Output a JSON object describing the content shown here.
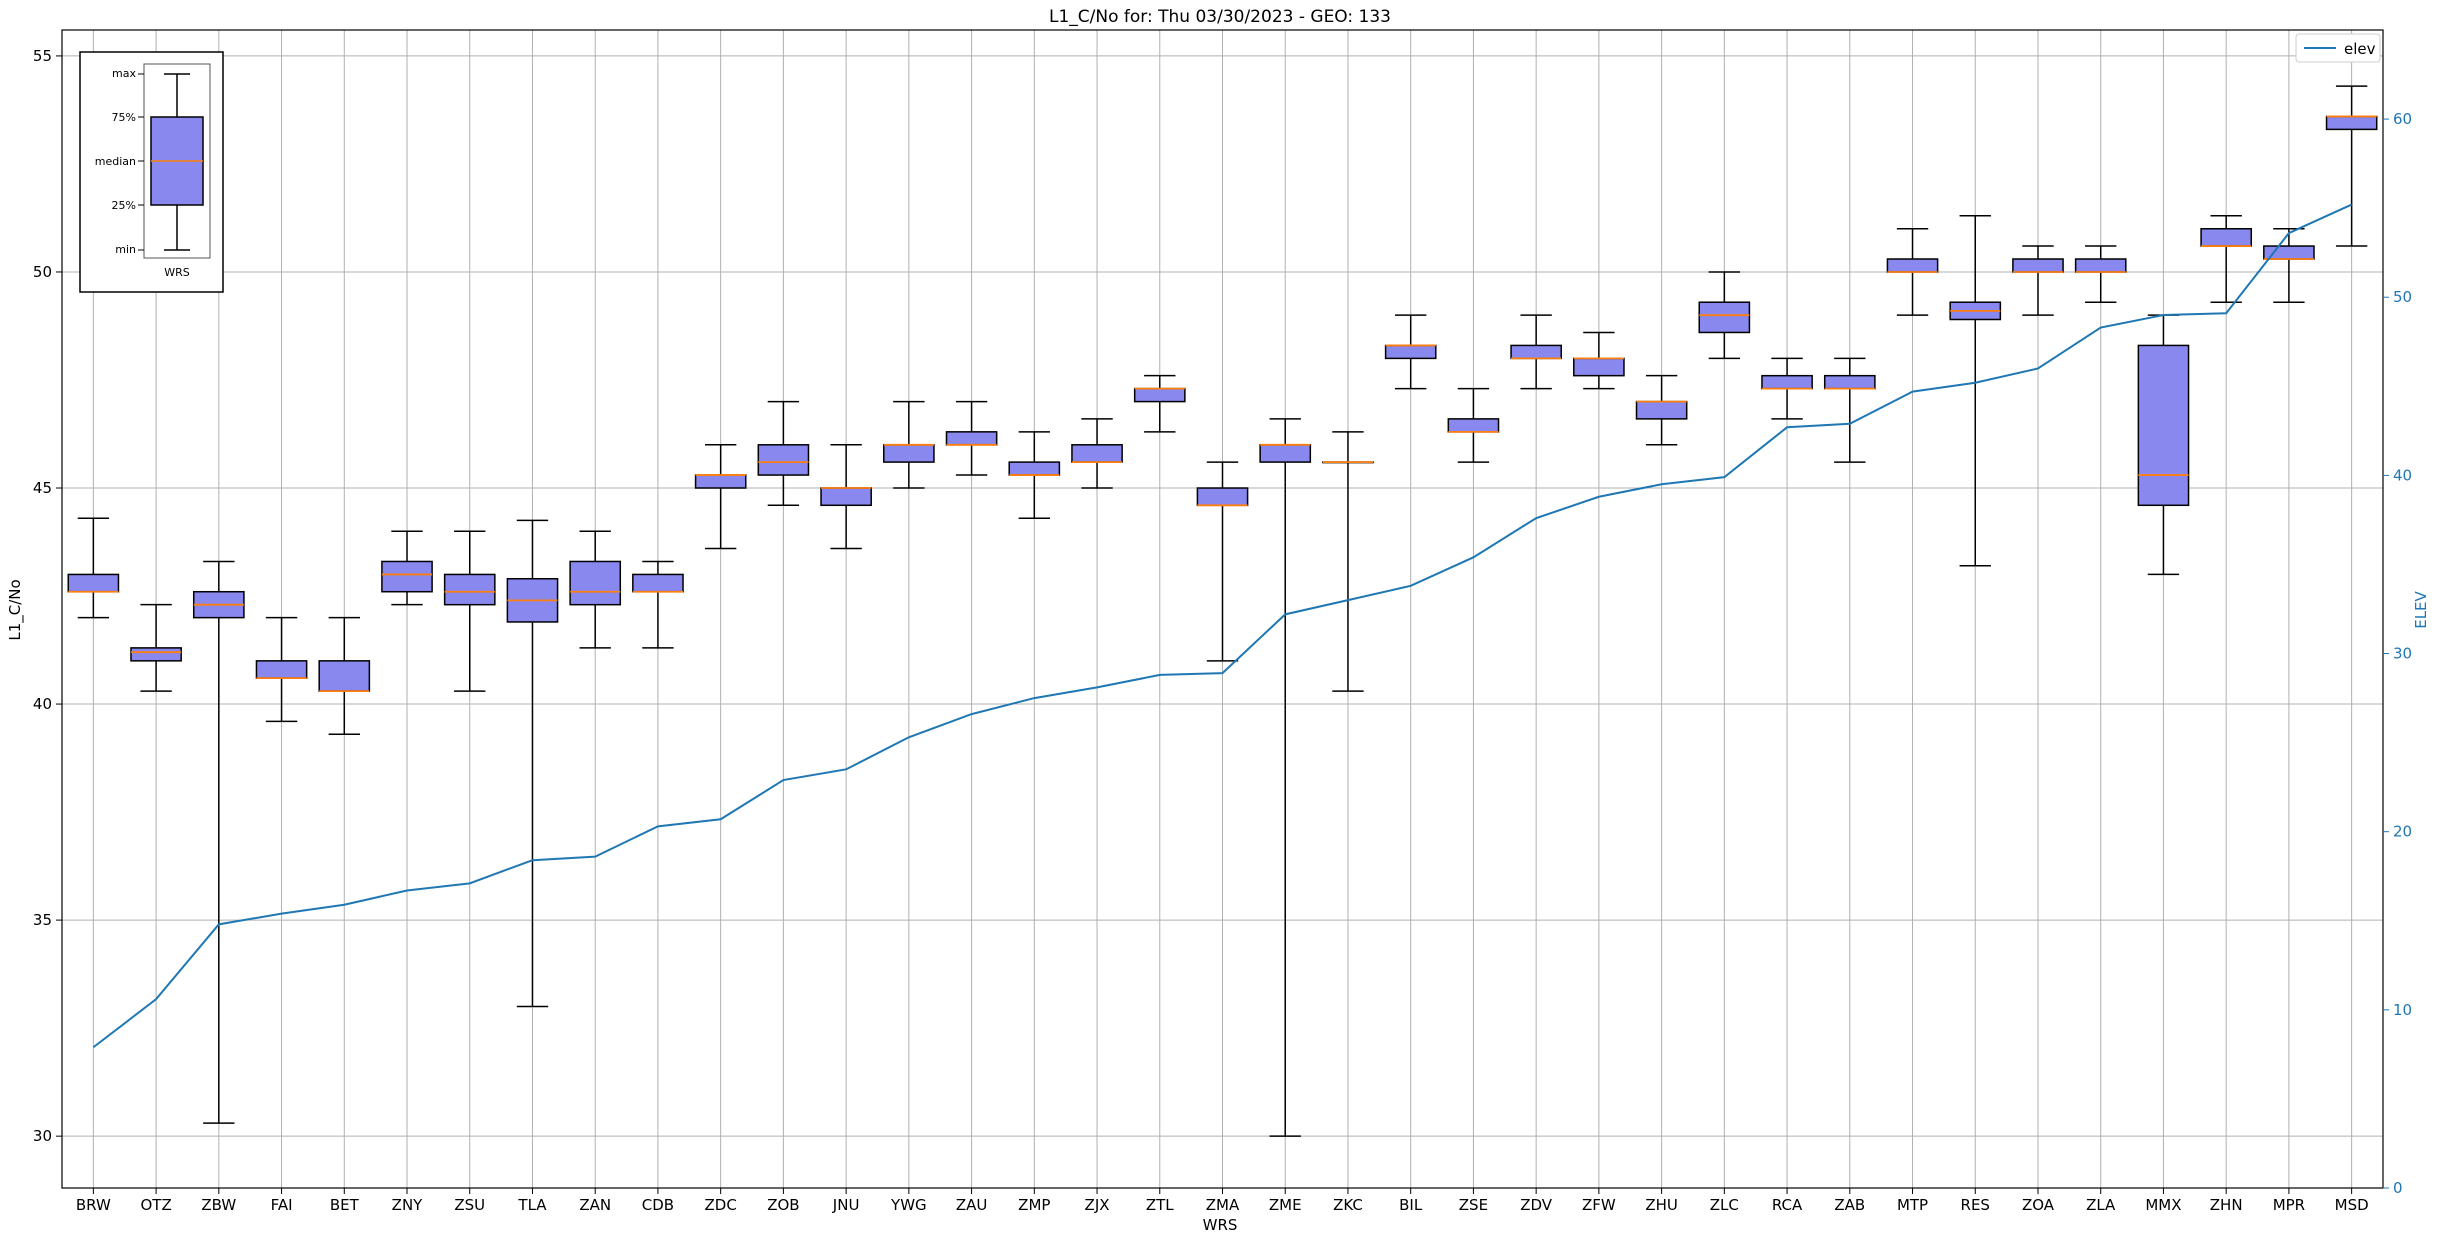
{
  "chart_data": {
    "type": "box",
    "title": "L1_C/No for: Thu 03/30/2023 - GEO: 133",
    "xlabel": "WRS",
    "ylabel": "L1_C/No",
    "y2label": "ELEV",
    "ylim": [
      28.8,
      55.6
    ],
    "y2lim": [
      0,
      65
    ],
    "yticks": [
      30,
      35,
      40,
      45,
      50,
      55
    ],
    "y2ticks": [
      0,
      10,
      20,
      30,
      40,
      50,
      60
    ],
    "grid": true,
    "legend": {
      "position": "top-right",
      "entries": [
        "elev"
      ]
    },
    "colors": {
      "box_fill": "#8888ee",
      "median": "#ff7f0e",
      "elev_line": "#1f77b4",
      "axis2": "#1f77b4",
      "grid": "#b0b0b0"
    },
    "categories": [
      "BRW",
      "OTZ",
      "ZBW",
      "FAI",
      "BET",
      "ZNY",
      "ZSU",
      "TLA",
      "ZAN",
      "CDB",
      "ZDC",
      "ZOB",
      "JNU",
      "YWG",
      "ZAU",
      "ZMP",
      "ZJX",
      "ZTL",
      "ZMA",
      "ZME",
      "ZKC",
      "BIL",
      "ZSE",
      "ZDV",
      "ZFW",
      "ZHU",
      "ZLC",
      "RCA",
      "ZAB",
      "MTP",
      "RES",
      "ZOA",
      "ZLA",
      "MMX",
      "ZHN",
      "MPR",
      "MSD"
    ],
    "boxes": [
      {
        "min": 42.0,
        "q1": 42.6,
        "median": 42.6,
        "q3": 43.0,
        "max": 44.3
      },
      {
        "min": 40.3,
        "q1": 41.0,
        "median": 41.2,
        "q3": 41.3,
        "max": 42.3
      },
      {
        "min": 30.3,
        "q1": 42.0,
        "median": 42.3,
        "q3": 42.6,
        "max": 43.3
      },
      {
        "min": 39.6,
        "q1": 40.6,
        "median": 40.6,
        "q3": 41.0,
        "max": 42.0
      },
      {
        "min": 39.3,
        "q1": 40.3,
        "median": 40.3,
        "q3": 41.0,
        "max": 42.0
      },
      {
        "min": 42.3,
        "q1": 42.6,
        "median": 43.0,
        "q3": 43.3,
        "max": 44.0
      },
      {
        "min": 40.3,
        "q1": 42.3,
        "median": 42.6,
        "q3": 43.0,
        "max": 44.0
      },
      {
        "min": 33.0,
        "q1": 41.9,
        "median": 42.4,
        "q3": 42.9,
        "max": 44.25
      },
      {
        "min": 41.3,
        "q1": 42.3,
        "median": 42.6,
        "q3": 43.3,
        "max": 44.0
      },
      {
        "min": 41.3,
        "q1": 42.6,
        "median": 42.6,
        "q3": 43.0,
        "max": 43.3
      },
      {
        "min": 43.6,
        "q1": 45.0,
        "median": 45.3,
        "q3": 45.3,
        "max": 46.0
      },
      {
        "min": 44.6,
        "q1": 45.3,
        "median": 45.6,
        "q3": 46.0,
        "max": 47.0
      },
      {
        "min": 43.6,
        "q1": 44.6,
        "median": 45.0,
        "q3": 45.0,
        "max": 46.0
      },
      {
        "min": 45.0,
        "q1": 45.6,
        "median": 46.0,
        "q3": 46.0,
        "max": 47.0
      },
      {
        "min": 45.3,
        "q1": 46.0,
        "median": 46.0,
        "q3": 46.3,
        "max": 47.0
      },
      {
        "min": 44.3,
        "q1": 45.3,
        "median": 45.3,
        "q3": 45.6,
        "max": 46.3
      },
      {
        "min": 45.0,
        "q1": 45.6,
        "median": 45.6,
        "q3": 46.0,
        "max": 46.6
      },
      {
        "min": 46.3,
        "q1": 47.0,
        "median": 47.3,
        "q3": 47.3,
        "max": 47.6
      },
      {
        "min": 41.0,
        "q1": 44.6,
        "median": 44.6,
        "q3": 45.0,
        "max": 45.6
      },
      {
        "min": 30.0,
        "q1": 45.6,
        "median": 46.0,
        "q3": 46.0,
        "max": 46.6
      },
      {
        "min": 40.3,
        "q1": 45.6,
        "median": 45.6,
        "q3": 45.6,
        "max": 46.3
      },
      {
        "min": 47.3,
        "q1": 48.0,
        "median": 48.3,
        "q3": 48.3,
        "max": 49.0
      },
      {
        "min": 45.6,
        "q1": 46.3,
        "median": 46.3,
        "q3": 46.6,
        "max": 47.3
      },
      {
        "min": 47.3,
        "q1": 48.0,
        "median": 48.0,
        "q3": 48.3,
        "max": 49.0
      },
      {
        "min": 47.3,
        "q1": 47.6,
        "median": 48.0,
        "q3": 48.0,
        "max": 48.6
      },
      {
        "min": 46.0,
        "q1": 46.6,
        "median": 47.0,
        "q3": 47.0,
        "max": 47.6
      },
      {
        "min": 48.0,
        "q1": 48.6,
        "median": 49.0,
        "q3": 49.3,
        "max": 50.0
      },
      {
        "min": 46.6,
        "q1": 47.3,
        "median": 47.3,
        "q3": 47.6,
        "max": 48.0
      },
      {
        "min": 45.6,
        "q1": 47.3,
        "median": 47.3,
        "q3": 47.6,
        "max": 48.0
      },
      {
        "min": 49.0,
        "q1": 50.0,
        "median": 50.0,
        "q3": 50.3,
        "max": 51.0
      },
      {
        "min": 43.2,
        "q1": 48.9,
        "median": 49.1,
        "q3": 49.3,
        "max": 51.3
      },
      {
        "min": 49.0,
        "q1": 50.0,
        "median": 50.0,
        "q3": 50.3,
        "max": 50.6
      },
      {
        "min": 49.3,
        "q1": 50.0,
        "median": 50.0,
        "q3": 50.3,
        "max": 50.6
      },
      {
        "min": 43.0,
        "q1": 44.6,
        "median": 45.3,
        "q3": 48.3,
        "max": 49.0
      },
      {
        "min": 49.3,
        "q1": 50.6,
        "median": 50.6,
        "q3": 51.0,
        "max": 51.3
      },
      {
        "min": 49.3,
        "q1": 50.3,
        "median": 50.3,
        "q3": 50.6,
        "max": 51.0
      },
      {
        "min": 50.6,
        "q1": 53.3,
        "median": 53.6,
        "q3": 53.6,
        "max": 54.3
      }
    ],
    "elev": [
      7.9,
      10.6,
      14.8,
      15.4,
      15.9,
      16.7,
      17.1,
      18.4,
      18.6,
      20.3,
      20.7,
      22.9,
      23.5,
      25.3,
      26.6,
      27.5,
      28.1,
      28.8,
      28.9,
      32.2,
      33.0,
      33.8,
      35.4,
      37.6,
      38.8,
      39.5,
      39.9,
      42.7,
      42.9,
      44.7,
      45.2,
      46.0,
      48.3,
      49.0,
      49.1,
      53.6,
      55.2
    ],
    "inset": {
      "labels": [
        "max",
        "75%",
        "median",
        "25%",
        "min"
      ],
      "xlabel": "WRS"
    }
  }
}
